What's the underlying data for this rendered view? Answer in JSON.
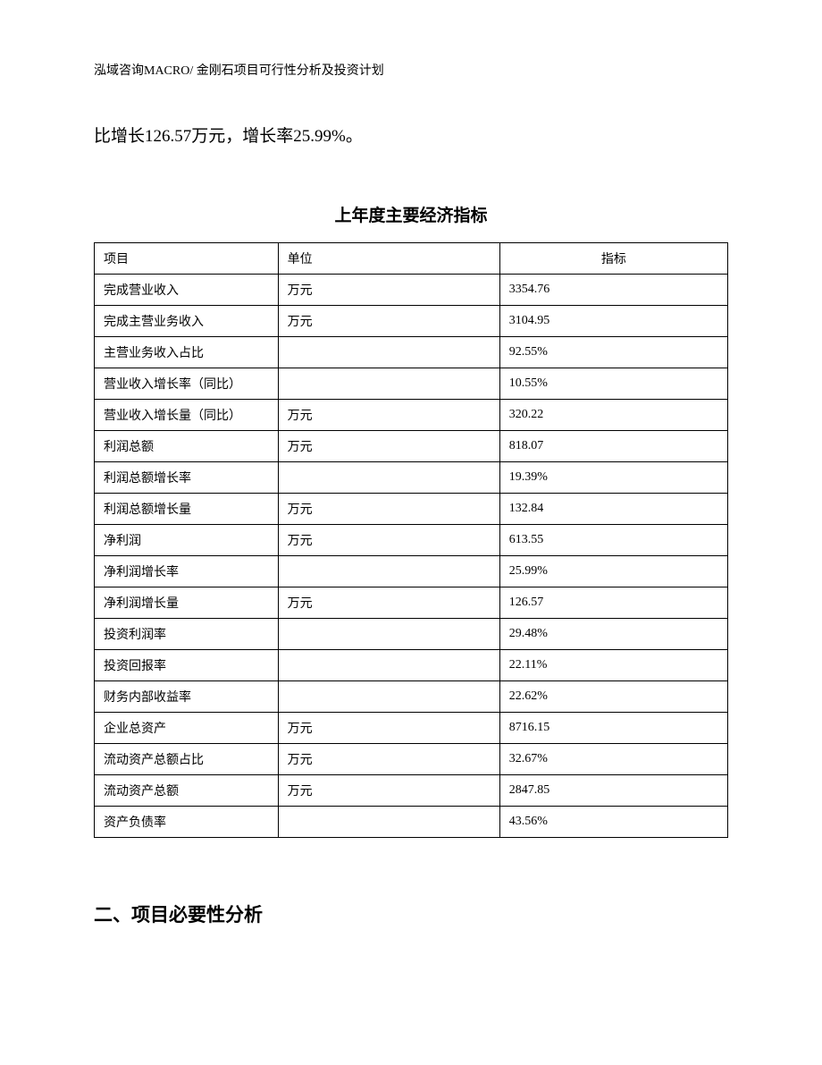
{
  "header": "泓域咨询MACRO/ 金刚石项目可行性分析及投资计划",
  "body_text": "比增长126.57万元，增长率25.99%。",
  "table": {
    "title": "上年度主要经济指标",
    "columns": [
      "项目",
      "单位",
      "指标"
    ],
    "rows": [
      {
        "item": "完成营业收入",
        "unit": "万元",
        "indicator": "3354.76"
      },
      {
        "item": "完成主营业务收入",
        "unit": "万元",
        "indicator": "3104.95"
      },
      {
        "item": "主营业务收入占比",
        "unit": "",
        "indicator": "92.55%"
      },
      {
        "item": "营业收入增长率（同比）",
        "unit": "",
        "indicator": "10.55%"
      },
      {
        "item": "营业收入增长量（同比）",
        "unit": "万元",
        "indicator": "320.22"
      },
      {
        "item": "利润总额",
        "unit": "万元",
        "indicator": "818.07"
      },
      {
        "item": "利润总额增长率",
        "unit": "",
        "indicator": "19.39%"
      },
      {
        "item": "利润总额增长量",
        "unit": "万元",
        "indicator": "132.84"
      },
      {
        "item": "净利润",
        "unit": "万元",
        "indicator": "613.55"
      },
      {
        "item": "净利润增长率",
        "unit": "",
        "indicator": "25.99%"
      },
      {
        "item": "净利润增长量",
        "unit": "万元",
        "indicator": "126.57"
      },
      {
        "item": "投资利润率",
        "unit": "",
        "indicator": "29.48%"
      },
      {
        "item": "投资回报率",
        "unit": "",
        "indicator": "22.11%"
      },
      {
        "item": "财务内部收益率",
        "unit": "",
        "indicator": "22.62%"
      },
      {
        "item": "企业总资产",
        "unit": "万元",
        "indicator": "8716.15"
      },
      {
        "item": "流动资产总额占比",
        "unit": "万元",
        "indicator": "32.67%"
      },
      {
        "item": "流动资产总额",
        "unit": "万元",
        "indicator": "2847.85"
      },
      {
        "item": "资产负债率",
        "unit": "",
        "indicator": "43.56%"
      }
    ]
  },
  "section_heading": "二、项目必要性分析"
}
